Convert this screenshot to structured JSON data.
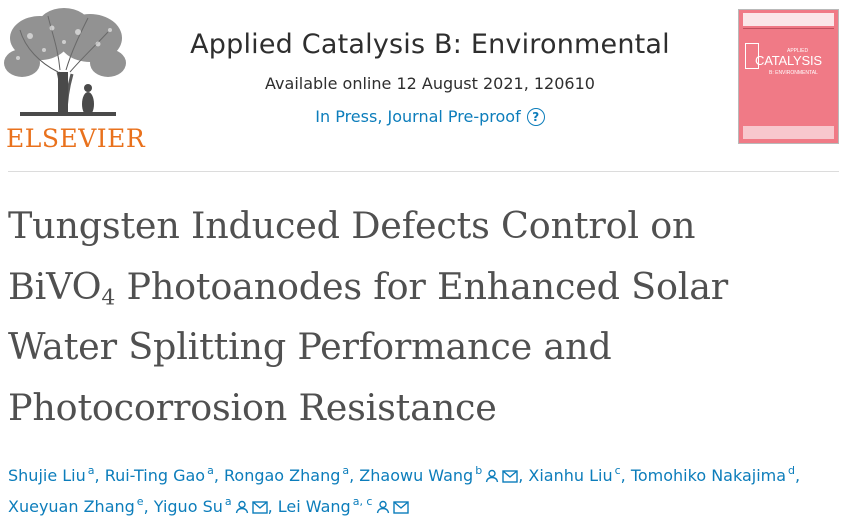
{
  "publisher": {
    "logo_text": "ELSEVIER",
    "icon": "elsevier-tree-logo"
  },
  "journal": {
    "title": "Applied Catalysis B: Environmental",
    "available": "Available online 12 August 2021, 120610",
    "status": "In Press, Journal Pre-proof",
    "help_icon": "?",
    "cover": {
      "name": "CATALYSIS",
      "sub_top": "APPLIED",
      "sub_bottom": "B: ENVIRONMENTAL",
      "color": "#f07a86"
    }
  },
  "article": {
    "title_line1": "Tungsten Induced Defects Control on",
    "title_formula": "BiVO",
    "title_formula_sub": "4",
    "title_line2_rest": " Photoanodes for Enhanced Solar",
    "title_line3": "Water Splitting Performance and",
    "title_line4": "Photocorrosion Resistance"
  },
  "authors": [
    {
      "name": "Shujie Liu",
      "aff": "a",
      "person_icon": false,
      "mail_icon": false
    },
    {
      "name": "Rui-Ting Gao",
      "aff": "a",
      "person_icon": false,
      "mail_icon": false
    },
    {
      "name": "Rongao Zhang",
      "aff": "a",
      "person_icon": false,
      "mail_icon": false
    },
    {
      "name": "Zhaowu Wang",
      "aff": "b",
      "person_icon": true,
      "mail_icon": true
    },
    {
      "name": "Xianhu Liu",
      "aff": "c",
      "person_icon": false,
      "mail_icon": false
    },
    {
      "name": "Tomohiko Nakajima",
      "aff": "d",
      "person_icon": false,
      "mail_icon": false
    },
    {
      "name": "Xueyuan Zhang",
      "aff": "e",
      "person_icon": false,
      "mail_icon": false
    },
    {
      "name": "Yiguo Su",
      "aff": "a",
      "person_icon": true,
      "mail_icon": true
    },
    {
      "name": "Lei Wang",
      "aff": "a, c",
      "person_icon": true,
      "mail_icon": true
    }
  ],
  "colors": {
    "link": "#0c7dbb",
    "elsevier_orange": "#e9711c",
    "title_gray": "#505050"
  }
}
